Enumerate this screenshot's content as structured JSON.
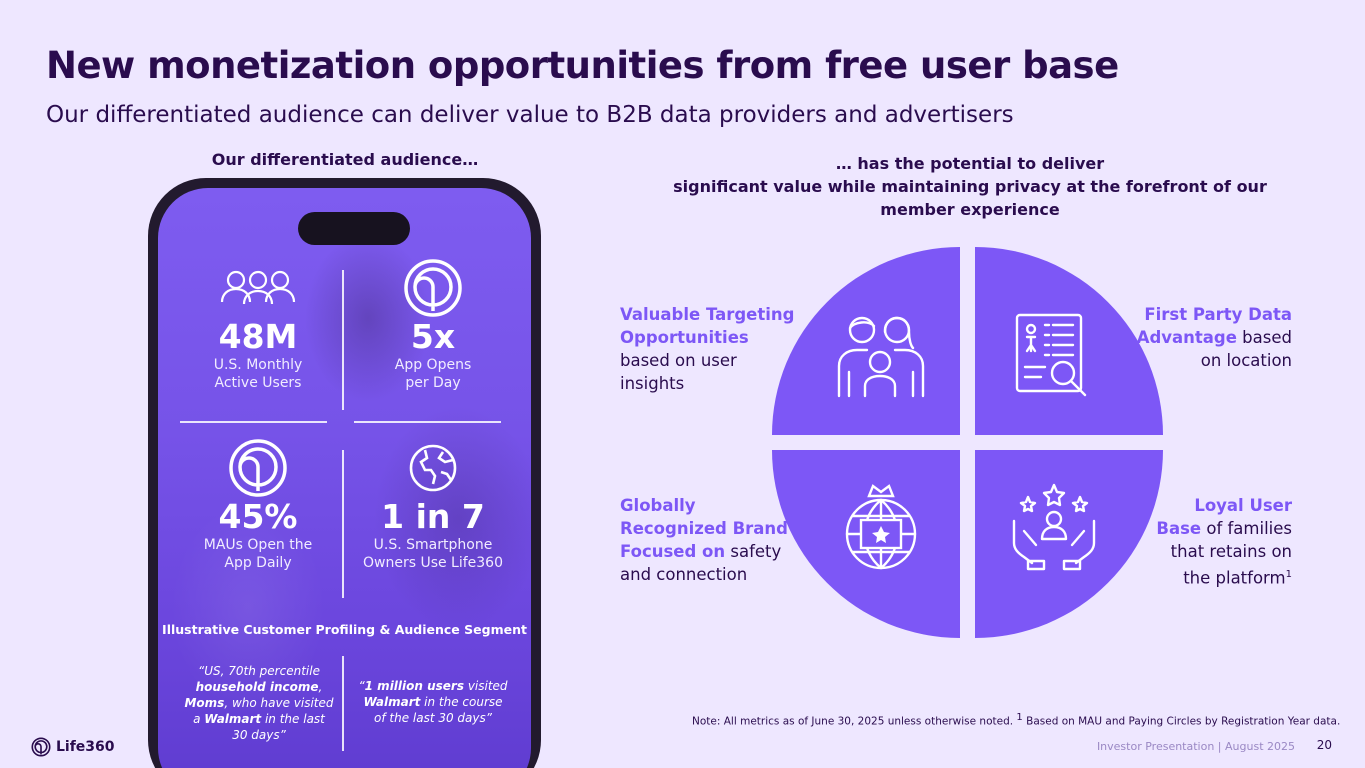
{
  "header": {
    "title": "New monetization opportunities from free user base",
    "subtitle": "Our differentiated audience can deliver value to B2B data providers and advertisers"
  },
  "left": {
    "heading": "Our differentiated audience…",
    "stats": [
      {
        "value": "48M",
        "label_1": "U.S. Monthly",
        "label_2": "Active Users",
        "icon": "people-icon"
      },
      {
        "value": "5x",
        "label_1": "App Opens",
        "label_2": "per Day",
        "icon": "life360-ring-icon"
      },
      {
        "value": "45%",
        "label_1": "MAUs Open the",
        "label_2": "App Daily",
        "icon": "life360-ring-icon"
      },
      {
        "value": "1 in 7",
        "label_1": "U.S. Smartphone",
        "label_2": "Owners Use Life360",
        "icon": "globe-icon"
      }
    ],
    "segment_title": "Illustrative Customer Profiling & Audience Segment",
    "quote_left": {
      "p1": "“US, 70th percentile ",
      "b1": "household income",
      "p2": ", ",
      "b2": "Moms",
      "p3": ", who have visited a ",
      "b3": "Walmart",
      "p4": " in the last 30 days”"
    },
    "quote_right": {
      "p1": "“",
      "b1": "1 million users",
      "p2": " visited ",
      "b2": "Walmart",
      "p3": " in the course of the last 30 days”"
    }
  },
  "right": {
    "heading_1": "… has the potential to deliver",
    "heading_2": "significant value while maintaining privacy at the forefront of our",
    "heading_3": "member experience",
    "quadrants": {
      "tl": {
        "highlight": "Valuable Targeting Opportunities",
        "rest": " based on user insights",
        "icon": "family-icon"
      },
      "tr": {
        "highlight": "First Party Data Advantage",
        "rest": " based on location",
        "icon": "document-search-icon"
      },
      "bl": {
        "highlight": "Globally Recognized Brand Focused on",
        "rest": " safety and connection",
        "icon": "globe-badge-icon"
      },
      "br": {
        "highlight": "Loyal User Base",
        "rest": " of families that retains on the platform",
        "sup": "1",
        "icon": "hands-stars-icon"
      }
    },
    "colors": {
      "accent": "#7D57F6",
      "dark": "#2A0C4E",
      "background": "#EEE7FF"
    }
  },
  "footer": {
    "note": "Note: All metrics as of June 30, 2025 unless otherwise noted. ",
    "note_sup": "1",
    "note_rest": " Based on MAU and Paying Circles by Registration Year data.",
    "presentation": "Investor Presentation  | August 2025",
    "page": "20",
    "logo_text": "Life360"
  }
}
